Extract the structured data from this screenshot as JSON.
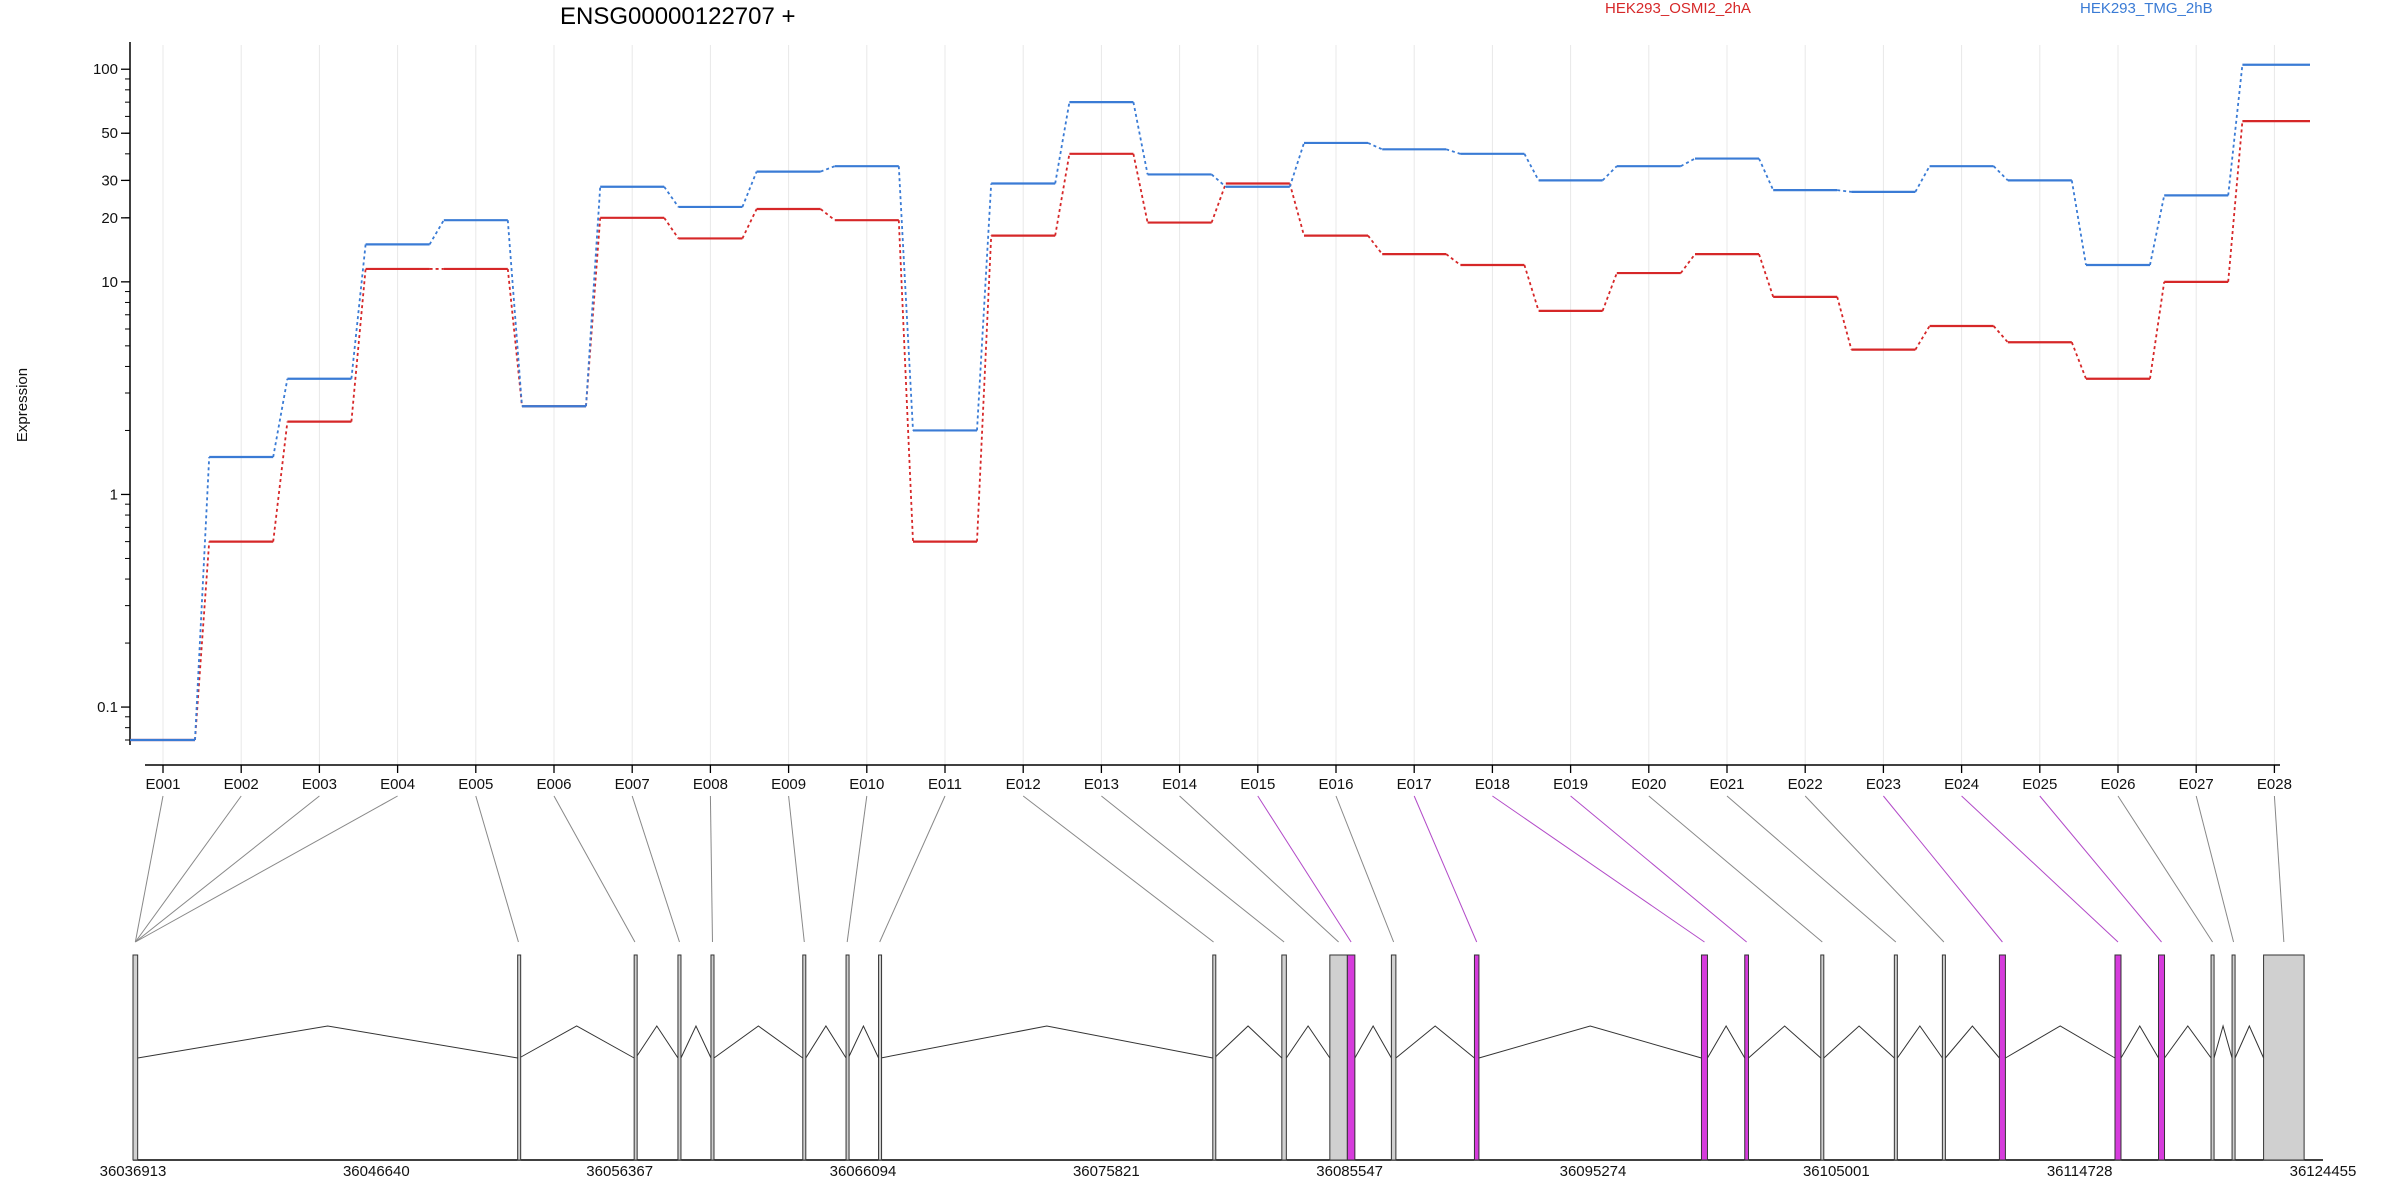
{
  "chart_data": {
    "type": "line",
    "title": "ENSG00000122707 +",
    "ylabel": "Expression",
    "yscale": "log",
    "ylim": [
      0.07,
      130
    ],
    "yticks": [
      0.1,
      1,
      10,
      20,
      30,
      50,
      100
    ],
    "ytick_labels": [
      "0.1",
      "1",
      "10",
      "20",
      "30",
      "50",
      "100"
    ],
    "grid": "vertical",
    "legend_position": "top-right",
    "categories": [
      "E001",
      "E002",
      "E003",
      "E004",
      "E005",
      "E006",
      "E007",
      "E008",
      "E009",
      "E010",
      "E011",
      "E012",
      "E013",
      "E014",
      "E015",
      "E016",
      "E017",
      "E018",
      "E019",
      "E020",
      "E021",
      "E022",
      "E023",
      "E024",
      "E025",
      "E026",
      "E027",
      "E028"
    ],
    "series": [
      {
        "name": "HEK293_OSMI2_2hA",
        "color": "#d62728",
        "values": [
          0.07,
          0.6,
          2.2,
          11.5,
          11.5,
          2.6,
          20,
          16,
          22,
          19.5,
          0.6,
          16.5,
          40,
          19,
          29,
          16.5,
          13.5,
          12,
          7.3,
          11,
          13.5,
          8.5,
          4.8,
          6.2,
          5.2,
          3.5,
          10,
          57
        ]
      },
      {
        "name": "HEK293_TMG_2hB",
        "color": "#3a7bd5",
        "values": [
          0.07,
          1.5,
          3.5,
          15,
          19.5,
          2.6,
          28,
          22.5,
          33,
          35,
          2.0,
          29,
          70,
          32,
          28,
          45,
          42,
          40,
          30,
          35,
          38,
          27,
          26.5,
          35,
          30,
          12,
          25.5,
          105
        ]
      }
    ],
    "gene_model": {
      "genomic_axis_ticks": [
        "36036913",
        "36046640",
        "36056367",
        "36066094",
        "36075821",
        "36085547",
        "36095274",
        "36105001",
        "36114728",
        "36124455"
      ],
      "genomic_range": [
        36036913,
        36124455
      ],
      "exon_colors": {
        "normal": "#d0d0d0",
        "highlighted": "#d63cdc",
        "connector_highlight": "#b24ac8",
        "connector_normal": "#888888"
      },
      "exons": [
        {
          "id": "E001",
          "start": 36036913,
          "end": 36037100,
          "highlight": false
        },
        {
          "id": "E002",
          "start": 36036913,
          "end": 36037100,
          "highlight": false
        },
        {
          "id": "E003",
          "start": 36036913,
          "end": 36037100,
          "highlight": false
        },
        {
          "id": "E004",
          "start": 36036913,
          "end": 36037100,
          "highlight": false
        },
        {
          "id": "E005",
          "start": 36052290,
          "end": 36052350,
          "highlight": false
        },
        {
          "id": "E006",
          "start": 36056946,
          "end": 36057006,
          "highlight": false
        },
        {
          "id": "E007",
          "start": 36058697,
          "end": 36058817,
          "highlight": false
        },
        {
          "id": "E008",
          "start": 36060017,
          "end": 36060137,
          "highlight": false
        },
        {
          "id": "E009",
          "start": 36063687,
          "end": 36063807,
          "highlight": false
        },
        {
          "id": "E010",
          "start": 36065416,
          "end": 36065506,
          "highlight": false
        },
        {
          "id": "E011",
          "start": 36066716,
          "end": 36066806,
          "highlight": false
        },
        {
          "id": "E012",
          "start": 36080076,
          "end": 36080136,
          "highlight": false
        },
        {
          "id": "E013",
          "start": 36082836,
          "end": 36083016,
          "highlight": false
        },
        {
          "id": "E014",
          "start": 36084755,
          "end": 36085455,
          "highlight": false
        },
        {
          "id": "E015",
          "start": 36085455,
          "end": 36085755,
          "highlight": true
        },
        {
          "id": "E016",
          "start": 36087215,
          "end": 36087395,
          "highlight": false
        },
        {
          "id": "E017",
          "start": 36090535,
          "end": 36090715,
          "highlight": true
        },
        {
          "id": "E018",
          "start": 36099610,
          "end": 36099850,
          "highlight": true
        },
        {
          "id": "E019",
          "start": 36101340,
          "end": 36101490,
          "highlight": true
        },
        {
          "id": "E020",
          "start": 36104380,
          "end": 36104500,
          "highlight": false
        },
        {
          "id": "E021",
          "start": 36107320,
          "end": 36107440,
          "highlight": false
        },
        {
          "id": "E022",
          "start": 36109240,
          "end": 36109360,
          "highlight": false
        },
        {
          "id": "E023",
          "start": 36111520,
          "end": 36111760,
          "highlight": true
        },
        {
          "id": "E024",
          "start": 36116140,
          "end": 36116380,
          "highlight": true
        },
        {
          "id": "E025",
          "start": 36117880,
          "end": 36118120,
          "highlight": true
        },
        {
          "id": "E026",
          "start": 36119980,
          "end": 36120100,
          "highlight": false
        },
        {
          "id": "E027",
          "start": 36120820,
          "end": 36120940,
          "highlight": false
        },
        {
          "id": "E028",
          "start": 36122080,
          "end": 36123700,
          "highlight": false
        }
      ]
    }
  }
}
